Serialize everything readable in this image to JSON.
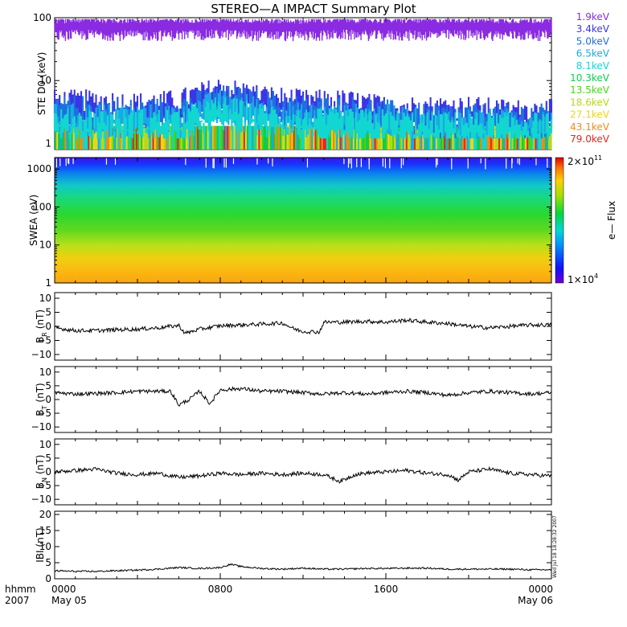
{
  "title": "STEREO—A IMPACT Summary Plot",
  "time_axis": {
    "corner_label": [
      "hhmm",
      "2007"
    ],
    "ticks": [
      {
        "hhmm": "0000",
        "date": "May 05",
        "hours": 0
      },
      {
        "hhmm": "0800",
        "date": "",
        "hours": 8
      },
      {
        "hhmm": "1600",
        "date": "",
        "hours": 16
      },
      {
        "hhmm": "0000",
        "date": "May 06",
        "hours": 24
      }
    ],
    "range_hours": [
      0,
      24
    ]
  },
  "stamp": "Wed Jul 18 18:28:32 2007",
  "panels": {
    "ste": {
      "ylabel": "STE D0 (keV)",
      "scale": "log",
      "yrange": [
        0.8,
        100
      ],
      "ytick_labels": [
        "1",
        "10",
        "100"
      ],
      "ytick_values": [
        1,
        10,
        100
      ],
      "legend": [
        {
          "label": "1.9keV",
          "color": "#8a2be2"
        },
        {
          "label": "3.4keV",
          "color": "#3a35e6"
        },
        {
          "label": "5.0keV",
          "color": "#1f6fe0"
        },
        {
          "label": "6.5keV",
          "color": "#1aa8e6"
        },
        {
          "label": "8.1keV",
          "color": "#12d6d0"
        },
        {
          "label": "10.3keV",
          "color": "#14c94f"
        },
        {
          "label": "13.5keV",
          "color": "#48d616"
        },
        {
          "label": "18.6keV",
          "color": "#b7d81a"
        },
        {
          "label": "27.1keV",
          "color": "#ecd614"
        },
        {
          "label": "43.1keV",
          "color": "#f28a10"
        },
        {
          "label": "79.0keV",
          "color": "#e8261c"
        }
      ]
    },
    "swea": {
      "ylabel": "SWEA (eV)",
      "scale": "log",
      "yrange": [
        1,
        2000
      ],
      "ytick_labels": [
        "1",
        "10",
        "100",
        "1000"
      ],
      "ytick_values": [
        1,
        10,
        100,
        1000
      ],
      "colorbar": {
        "label": "e— Flux",
        "max_label": "2×10",
        "max_exp": "11",
        "min_label": "1×10",
        "min_exp": "4"
      }
    },
    "br": {
      "ylabel": "B",
      "ylabel_sub": "R",
      "ylabel_unit": "(nT)",
      "yrange": [
        -12,
        12
      ],
      "ytick_labels": [
        "10",
        "5",
        "0",
        "−5",
        "−10"
      ],
      "ytick_values": [
        10,
        5,
        0,
        -5,
        -10
      ]
    },
    "bt": {
      "ylabel": "B",
      "ylabel_sub": "T",
      "ylabel_unit": "(nT)",
      "yrange": [
        -12,
        12
      ],
      "ytick_labels": [
        "10",
        "5",
        "0",
        "−5",
        "−10"
      ],
      "ytick_values": [
        10,
        5,
        0,
        -5,
        -10
      ]
    },
    "bn": {
      "ylabel": "B",
      "ylabel_sub": "N",
      "ylabel_unit": "(nT)",
      "yrange": [
        -12,
        12
      ],
      "ytick_labels": [
        "10",
        "5",
        "0",
        "−5",
        "−10"
      ],
      "ytick_values": [
        10,
        5,
        0,
        -5,
        -10
      ]
    },
    "bmag": {
      "ylabel": "IBI (nT)",
      "yrange": [
        0,
        21
      ],
      "ytick_labels": [
        "20",
        "15",
        "10",
        "5",
        "0"
      ],
      "ytick_values": [
        20,
        15,
        10,
        5,
        0
      ]
    }
  },
  "chart_data": [
    {
      "type": "line",
      "ylabel": "STE D0 (keV)",
      "scale": "log",
      "ylim": [
        0.8,
        100
      ],
      "x_hours": [
        0,
        2,
        4,
        6,
        8,
        10,
        12,
        14,
        16,
        18,
        20,
        22,
        24
      ],
      "series": [
        {
          "name": "1.9keV",
          "values": [
            70,
            72,
            70,
            71,
            73,
            70,
            69,
            72,
            70,
            71,
            72,
            70,
            71
          ]
        },
        {
          "name": "3.4keV",
          "values": [
            5,
            5,
            4.5,
            5,
            8,
            6,
            5,
            5,
            4,
            4,
            4,
            3.5,
            3.5
          ]
        },
        {
          "name": "5.0keV",
          "values": [
            4,
            4,
            3.5,
            4,
            6,
            5,
            4,
            4,
            3.5,
            3,
            3,
            3,
            3
          ]
        },
        {
          "name": "6.5keV",
          "values": [
            3,
            3,
            3,
            3,
            5,
            4,
            3,
            3,
            3,
            2.5,
            2.5,
            2.5,
            2.5
          ]
        },
        {
          "name": "8.1keV",
          "values": [
            2.5,
            2.5,
            2.5,
            2.5,
            4,
            3,
            2.5,
            2.5,
            2.5,
            2.2,
            2.2,
            2.2,
            2.2
          ]
        },
        {
          "name": "10.3keV",
          "values": [
            1.9,
            1.9,
            1.9,
            1.9,
            2,
            1.9,
            1.9,
            1.9,
            1.9,
            1.9,
            1.9,
            1.9,
            1.9
          ]
        },
        {
          "name": "13.5keV",
          "values": [
            1.7,
            1.7,
            1.7,
            1.7,
            1.8,
            1.7,
            1.7,
            1.7,
            1.7,
            1.7,
            1.7,
            1.7,
            1.7
          ]
        },
        {
          "name": "18.6keV",
          "values": [
            1.5,
            1.5,
            1.5,
            1.5,
            1.5,
            1.5,
            1.5,
            1.5,
            1.5,
            1.5,
            1.5,
            1.5,
            1.5
          ]
        },
        {
          "name": "27.1keV",
          "values": [
            1.3,
            1.3,
            1.3,
            1.3,
            1.3,
            1.3,
            1.3,
            1.3,
            1.3,
            1.3,
            1.3,
            1.3,
            1.3
          ]
        },
        {
          "name": "43.1keV",
          "values": [
            1.15,
            1.15,
            1.15,
            1.15,
            1.15,
            1.15,
            1.15,
            1.15,
            1.15,
            1.15,
            1.15,
            1.15,
            1.15
          ]
        },
        {
          "name": "79.0keV",
          "values": [
            1.0,
            1.0,
            1.0,
            1.0,
            1.0,
            1.0,
            1.0,
            1.0,
            1.0,
            1.0,
            1.0,
            1.0,
            1.0
          ]
        }
      ]
    },
    {
      "type": "heatmap",
      "ylabel": "SWEA (eV)",
      "scale": "log",
      "ylim": [
        1,
        2000
      ],
      "colorbar_range": [
        10000,
        200000000000
      ],
      "energy_ev": [
        1,
        3,
        10,
        30,
        100,
        300,
        1000,
        2000
      ],
      "flux_profile": [
        1500000000.0,
        900000000.0,
        200000000.0,
        80000000.0,
        15000000.0,
        2000000.0,
        50000.0,
        10000.0
      ]
    },
    {
      "type": "line",
      "ylabel": "B_R (nT)",
      "ylim": [
        -12,
        12
      ],
      "x_hours": [
        0,
        1,
        2,
        3,
        4,
        5,
        6,
        6.3,
        7,
        8,
        9,
        10,
        11,
        11.6,
        12,
        12.8,
        13,
        14,
        15,
        16,
        17,
        18,
        19,
        20,
        21,
        22,
        23,
        24
      ],
      "y": [
        -0.5,
        -1.5,
        -1.5,
        -1.2,
        -1,
        -0.5,
        0.3,
        -2.5,
        -1,
        0.2,
        0.5,
        0.8,
        1.2,
        -1,
        -1.8,
        -2,
        1.5,
        1.5,
        1.8,
        1.5,
        2.2,
        1.5,
        1,
        0,
        -0.5,
        0,
        0.5,
        0.5
      ]
    },
    {
      "type": "line",
      "ylabel": "B_T (nT)",
      "ylim": [
        -12,
        12
      ],
      "x_hours": [
        0,
        1,
        2,
        3,
        4,
        5,
        5.6,
        6,
        6.5,
        7,
        7.5,
        8,
        9,
        10,
        11,
        12,
        13,
        14,
        15,
        16,
        17,
        18,
        19,
        20,
        21,
        22,
        23,
        24
      ],
      "y": [
        2.5,
        2,
        2.2,
        2.5,
        3,
        3,
        3,
        -2,
        0,
        3,
        -1.5,
        3.5,
        4,
        3,
        3,
        2.5,
        2,
        2.5,
        2,
        2.5,
        3,
        2.5,
        1.5,
        2.5,
        3,
        2.5,
        2,
        2.5
      ]
    },
    {
      "type": "line",
      "ylabel": "B_N (nT)",
      "ylim": [
        -12,
        12
      ],
      "x_hours": [
        0,
        1,
        2,
        3,
        4,
        5,
        6,
        7,
        8,
        9,
        10,
        11,
        12,
        13,
        13.8,
        14.5,
        15,
        16,
        17,
        18,
        19,
        19.5,
        20,
        21,
        22,
        23,
        24
      ],
      "y": [
        0,
        0.5,
        1,
        -0.5,
        -1,
        -0.5,
        -2,
        -1.5,
        -0.5,
        -1,
        -0.5,
        -1,
        -0.5,
        -1,
        -3.5,
        -1,
        -0.5,
        0,
        0.5,
        -0.5,
        -1,
        -3,
        0,
        1,
        -0.5,
        -1,
        -1.5
      ]
    },
    {
      "type": "line",
      "ylabel": "IBI (nT)",
      "ylim": [
        0,
        21
      ],
      "x_hours": [
        0,
        1,
        2,
        3,
        4,
        5,
        6,
        7,
        8,
        8.5,
        9,
        10,
        11,
        12,
        13,
        14,
        15,
        16,
        17,
        18,
        19,
        20,
        21,
        22,
        23,
        24
      ],
      "y": [
        2.5,
        2.3,
        2.3,
        2.5,
        2.7,
        3,
        3.5,
        3.2,
        3.5,
        4.5,
        3.8,
        3.2,
        3,
        3.3,
        3,
        3,
        3.2,
        3.2,
        3.3,
        3.3,
        3,
        3,
        3,
        3,
        2.8,
        2.8
      ]
    }
  ]
}
